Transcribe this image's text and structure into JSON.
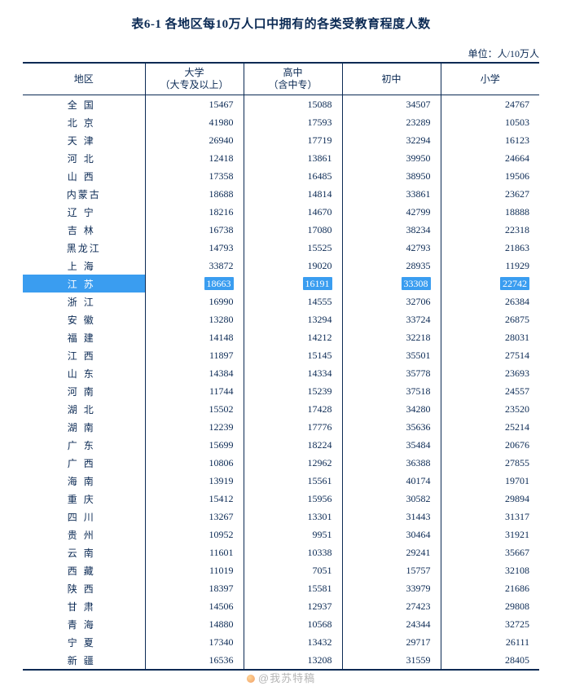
{
  "title": "表6-1 各地区每10万人口中拥有的各类受教育程度人数",
  "unit": "单位：人/10万人",
  "columns": {
    "region": "地区",
    "c1": {
      "label": "大学",
      "sub": "（大专及以上）"
    },
    "c2": {
      "label": "高中",
      "sub": "（含中专）"
    },
    "c3": {
      "label": "初中"
    },
    "c4": {
      "label": "小学"
    }
  },
  "highlight_region": "江苏",
  "colors": {
    "text": "#0b2a54",
    "highlight_bg": "#3a9df0",
    "highlight_text": "#ffffff",
    "background": "#ffffff"
  },
  "watermark": "@我苏特稿",
  "rows": [
    {
      "region": "全　国",
      "v": [
        15467,
        15088,
        34507,
        24767
      ]
    },
    {
      "region": "北　京",
      "v": [
        41980,
        17593,
        23289,
        10503
      ]
    },
    {
      "region": "天　津",
      "v": [
        26940,
        17719,
        32294,
        16123
      ]
    },
    {
      "region": "河　北",
      "v": [
        12418,
        13861,
        39950,
        24664
      ]
    },
    {
      "region": "山　西",
      "v": [
        17358,
        16485,
        38950,
        19506
      ]
    },
    {
      "region": "内蒙古",
      "v": [
        18688,
        14814,
        33861,
        23627
      ],
      "tight": true
    },
    {
      "region": "辽　宁",
      "v": [
        18216,
        14670,
        42799,
        18888
      ]
    },
    {
      "region": "吉　林",
      "v": [
        16738,
        17080,
        38234,
        22318
      ]
    },
    {
      "region": "黑龙江",
      "v": [
        14793,
        15525,
        42793,
        21863
      ],
      "tight": true
    },
    {
      "region": "上　海",
      "v": [
        33872,
        19020,
        28935,
        11929
      ]
    },
    {
      "region": "江　苏",
      "v": [
        18663,
        16191,
        33308,
        22742
      ]
    },
    {
      "region": "浙　江",
      "v": [
        16990,
        14555,
        32706,
        26384
      ]
    },
    {
      "region": "安　徽",
      "v": [
        13280,
        13294,
        33724,
        26875
      ]
    },
    {
      "region": "福　建",
      "v": [
        14148,
        14212,
        32218,
        28031
      ]
    },
    {
      "region": "江　西",
      "v": [
        11897,
        15145,
        35501,
        27514
      ]
    },
    {
      "region": "山　东",
      "v": [
        14384,
        14334,
        35778,
        23693
      ]
    },
    {
      "region": "河　南",
      "v": [
        11744,
        15239,
        37518,
        24557
      ]
    },
    {
      "region": "湖　北",
      "v": [
        15502,
        17428,
        34280,
        23520
      ]
    },
    {
      "region": "湖　南",
      "v": [
        12239,
        17776,
        35636,
        25214
      ]
    },
    {
      "region": "广　东",
      "v": [
        15699,
        18224,
        35484,
        20676
      ]
    },
    {
      "region": "广　西",
      "v": [
        10806,
        12962,
        36388,
        27855
      ]
    },
    {
      "region": "海　南",
      "v": [
        13919,
        15561,
        40174,
        19701
      ]
    },
    {
      "region": "重　庆",
      "v": [
        15412,
        15956,
        30582,
        29894
      ]
    },
    {
      "region": "四　川",
      "v": [
        13267,
        13301,
        31443,
        31317
      ]
    },
    {
      "region": "贵　州",
      "v": [
        10952,
        9951,
        30464,
        31921
      ]
    },
    {
      "region": "云　南",
      "v": [
        11601,
        10338,
        29241,
        35667
      ]
    },
    {
      "region": "西　藏",
      "v": [
        11019,
        7051,
        15757,
        32108
      ]
    },
    {
      "region": "陕　西",
      "v": [
        18397,
        15581,
        33979,
        21686
      ]
    },
    {
      "region": "甘　肃",
      "v": [
        14506,
        12937,
        27423,
        29808
      ]
    },
    {
      "region": "青　海",
      "v": [
        14880,
        10568,
        24344,
        32725
      ]
    },
    {
      "region": "宁　夏",
      "v": [
        17340,
        13432,
        29717,
        26111
      ]
    },
    {
      "region": "新　疆",
      "v": [
        16536,
        13208,
        31559,
        28405
      ]
    }
  ]
}
